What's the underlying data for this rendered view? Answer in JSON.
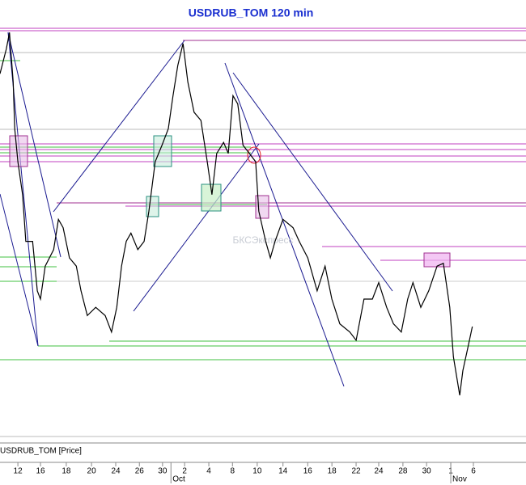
{
  "chart_data": {
    "type": "line",
    "title": "USDRUB_TOM 120 min",
    "series_label": "USDRUB_TOM [Price]",
    "watermark": "БКСЭкспресс",
    "color": "#000000",
    "x": [
      0,
      1.2,
      1.8,
      2.5,
      2.8,
      3.4,
      4.3,
      4.9,
      6.2,
      7.1,
      7.7,
      8.6,
      10.2,
      11.1,
      12,
      13.2,
      14.5,
      15.4,
      16.6,
      18.2,
      20,
      21.2,
      22.2,
      23.1,
      24,
      24.9,
      26.2,
      27.4,
      28.3,
      29.5,
      30.8,
      32,
      32.9,
      33.8,
      34.8,
      35.7,
      36.9,
      38.2,
      39.4,
      40.3,
      41.2,
      42.5,
      43.4,
      44.3,
      45.2,
      46.2,
      47.4,
      48.6,
      49.2,
      50.5,
      51.4,
      52.3,
      53.8,
      55.7,
      56.9,
      58.5,
      60.3,
      61.8,
      63.1,
      64.6,
      66.5,
      67.7,
      69.2,
      70.8,
      72,
      73.5,
      74.8,
      76.3,
      77.5,
      78.5,
      80,
      81.5,
      83.1,
      84.3,
      85.5,
      86.2,
      87.4,
      88,
      88.9,
      89.8
    ],
    "values": [
      33.12,
      33.21,
      33.27,
      33.09,
      32.92,
      32.8,
      32.68,
      32.51,
      32.51,
      32.33,
      32.3,
      32.42,
      32.48,
      32.59,
      32.56,
      32.45,
      32.42,
      32.33,
      32.24,
      32.27,
      32.24,
      32.18,
      32.27,
      32.42,
      32.51,
      32.54,
      32.48,
      32.51,
      32.62,
      32.8,
      32.86,
      32.92,
      33.04,
      33.15,
      33.23,
      33.09,
      32.98,
      32.95,
      32.8,
      32.68,
      32.83,
      32.87,
      32.83,
      33.04,
      33.01,
      32.86,
      32.83,
      32.8,
      32.62,
      32.51,
      32.45,
      32.51,
      32.59,
      32.56,
      32.51,
      32.45,
      32.33,
      32.42,
      32.3,
      32.21,
      32.18,
      32.15,
      32.3,
      32.3,
      32.36,
      32.27,
      32.21,
      32.18,
      32.3,
      32.36,
      32.27,
      32.33,
      32.42,
      32.43,
      32.27,
      32.09,
      31.95,
      32.04,
      32.12,
      32.2
    ],
    "xlim": [
      0,
      100
    ],
    "ylim": [
      31.8,
      33.3
    ],
    "xticks": [
      {
        "value": 3.4,
        "label": "12"
      },
      {
        "value": 7.7,
        "label": "16"
      },
      {
        "value": 12.6,
        "label": "18"
      },
      {
        "value": 17.4,
        "label": "20"
      },
      {
        "value": 22,
        "label": "24"
      },
      {
        "value": 26.5,
        "label": "26"
      },
      {
        "value": 30.9,
        "label": "30"
      },
      {
        "value": 35.1,
        "label": "2"
      },
      {
        "value": 39.7,
        "label": "4"
      },
      {
        "value": 44.2,
        "label": "8"
      },
      {
        "value": 48.9,
        "label": "10"
      },
      {
        "value": 53.8,
        "label": "14"
      },
      {
        "value": 58.5,
        "label": "16"
      },
      {
        "value": 63.1,
        "label": "18"
      },
      {
        "value": 67.7,
        "label": "22"
      },
      {
        "value": 72,
        "label": "24"
      },
      {
        "value": 76.6,
        "label": "28"
      },
      {
        "value": 81.1,
        "label": "30"
      },
      {
        "value": 85.7,
        "label": "1"
      },
      {
        "value": 90,
        "label": "6"
      }
    ],
    "month_labels": [
      {
        "value": 32.5,
        "label": "Oct"
      },
      {
        "value": 85.7,
        "label": "Nov"
      }
    ]
  }
}
